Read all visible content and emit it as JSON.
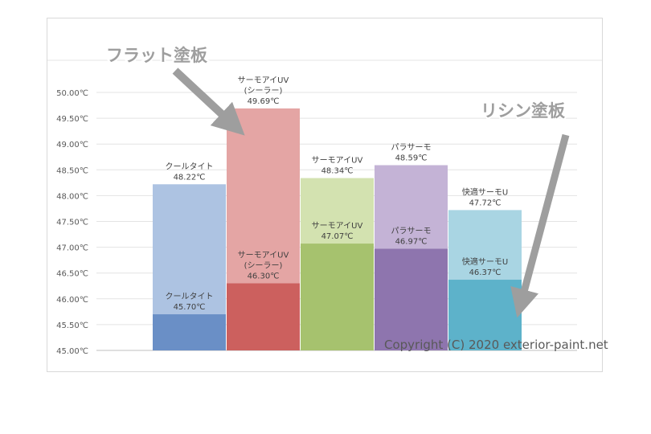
{
  "chart_data": {
    "type": "bar",
    "ylim": [
      45.0,
      50.0
    ],
    "ytick_step": 0.5,
    "ytick_labels": [
      "45.00℃",
      "45.50℃",
      "46.00℃",
      "46.50℃",
      "47.00℃",
      "47.50℃",
      "48.00℃",
      "48.50℃",
      "49.00℃",
      "49.50℃",
      "50.00℃"
    ],
    "grid": true,
    "bars": [
      {
        "group": 0,
        "color_top": "#adc3e2",
        "color_bottom": "#6a8fc6",
        "top": {
          "value": 48.22,
          "label_lines": [
            "クールタイト",
            "48.22℃"
          ]
        },
        "bottom": {
          "value": 45.7,
          "label_lines": [
            "クールタイト",
            "45.70℃"
          ]
        }
      },
      {
        "group": 1,
        "color_top": "#e4a5a4",
        "color_bottom": "#cc605e",
        "top": {
          "value": 49.69,
          "label_lines": [
            "サーモアイUV",
            "(シーラー)",
            "49.69℃"
          ]
        },
        "bottom": {
          "value": 46.3,
          "label_lines": [
            "サーモアイUV",
            "(シーラー)",
            "46.30℃"
          ]
        }
      },
      {
        "group": 2,
        "color_top": "#d3e2b0",
        "color_bottom": "#a6c26e",
        "top": {
          "value": 48.34,
          "label_lines": [
            "サーモアイUV",
            "48.34℃"
          ]
        },
        "bottom": {
          "value": 47.07,
          "label_lines": [
            "サーモアイUV",
            "47.07℃"
          ]
        }
      },
      {
        "group": 3,
        "color_top": "#c4b3d6",
        "color_bottom": "#8e75ae",
        "top": {
          "value": 48.59,
          "label_lines": [
            "パラサーモ",
            "48.59℃"
          ]
        },
        "bottom": {
          "value": 46.97,
          "label_lines": [
            "パラサーモ",
            "46.97℃"
          ]
        }
      },
      {
        "group": 4,
        "color_top": "#a9d5e3",
        "color_bottom": "#5db2ca",
        "top": {
          "value": 47.72,
          "label_lines": [
            "快適サーモU",
            "47.72℃"
          ]
        },
        "bottom": {
          "value": 46.37,
          "label_lines": [
            "快適サーモU",
            "46.37℃"
          ]
        }
      }
    ],
    "annotations": [
      "フラット塗板",
      "リシン塗板"
    ],
    "copyright": "Copyright (C) 2020 exterior-paint.net"
  }
}
